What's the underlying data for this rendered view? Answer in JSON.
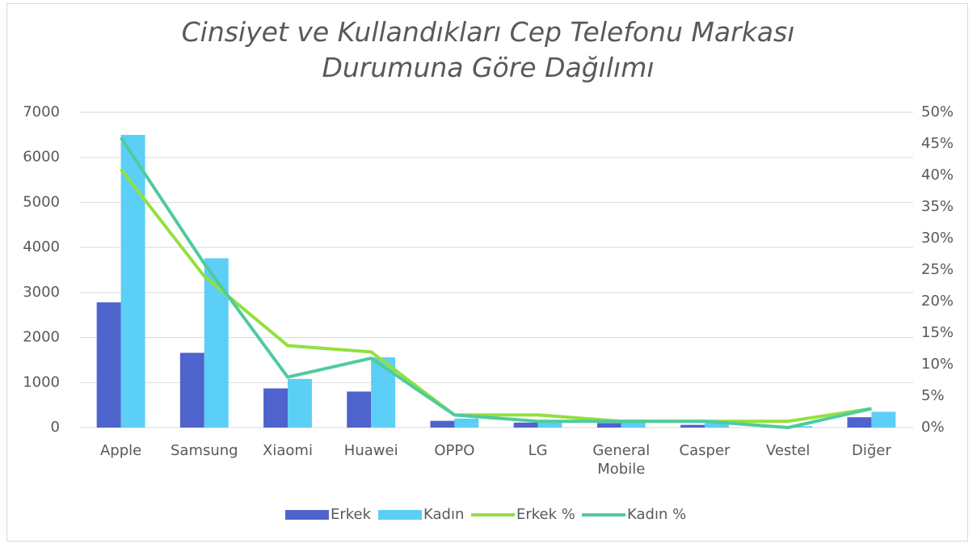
{
  "chart_data": {
    "type": "bar",
    "title": "Cinsiyet ve Kullandıkları Cep Telefonu Markası Durumuna Göre Dağılımı",
    "categories": [
      "Apple",
      "Samsung",
      "Xiaomi",
      "Huawei",
      "OPPO",
      "LG",
      "General Mobile",
      "Casper",
      "Vestel",
      "Diğer"
    ],
    "series": [
      {
        "name": "Erkek",
        "color": "#4f63cc",
        "type": "bar",
        "values": [
          2780,
          1660,
          870,
          800,
          150,
          110,
          100,
          60,
          20,
          230
        ]
      },
      {
        "name": "Kadın",
        "color": "#5bcff5",
        "type": "bar",
        "values": [
          6500,
          3760,
          1080,
          1560,
          200,
          150,
          130,
          100,
          30,
          350
        ]
      },
      {
        "name": "Erkek %",
        "color": "#92e03f",
        "type": "line",
        "axis": "y2",
        "values": [
          41,
          24,
          13,
          12,
          2,
          2,
          1,
          1,
          1,
          3
        ]
      },
      {
        "name": "Kadın %",
        "color": "#4fcb9e",
        "type": "line",
        "axis": "y2",
        "values": [
          46,
          26,
          8,
          11,
          2,
          1,
          1,
          1,
          0,
          3
        ]
      }
    ],
    "ylim": [
      0,
      7000
    ],
    "yticks": [
      0,
      1000,
      2000,
      3000,
      4000,
      5000,
      6000,
      7000
    ],
    "y2lim": [
      0,
      50
    ],
    "y2ticks": [
      {
        "value": 0,
        "label": "0%"
      },
      {
        "value": 5,
        "label": "5%"
      },
      {
        "value": 10,
        "label": "10%"
      },
      {
        "value": 15,
        "label": "15%"
      },
      {
        "value": 20,
        "label": "20%"
      },
      {
        "value": 25,
        "label": "25%"
      },
      {
        "value": 30,
        "label": "30%"
      },
      {
        "value": 35,
        "label": "35%"
      },
      {
        "value": 40,
        "label": "40%"
      },
      {
        "value": 45,
        "label": "45%"
      },
      {
        "value": 50,
        "label": "50%"
      }
    ],
    "grid": true,
    "legend": "bottom"
  }
}
